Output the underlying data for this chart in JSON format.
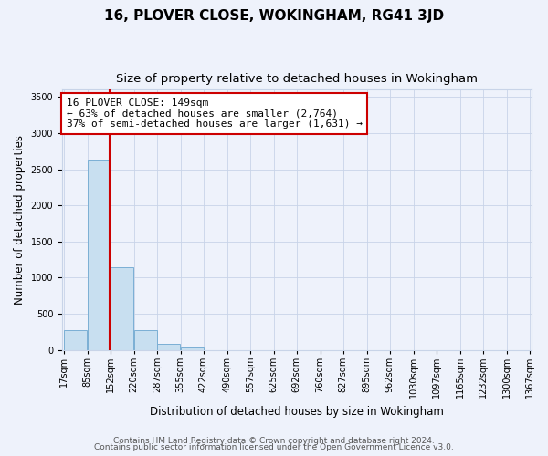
{
  "title": "16, PLOVER CLOSE, WOKINGHAM, RG41 3JD",
  "subtitle": "Size of property relative to detached houses in Wokingham",
  "xlabel": "Distribution of detached houses by size in Wokingham",
  "ylabel": "Number of detached properties",
  "bar_edges": [
    17,
    85,
    152,
    220,
    287,
    355,
    422,
    490,
    557,
    625,
    692,
    760,
    827,
    895,
    962,
    1030,
    1097,
    1165,
    1232,
    1300,
    1367
  ],
  "bar_heights": [
    270,
    2630,
    1140,
    275,
    80,
    40,
    0,
    0,
    0,
    0,
    0,
    0,
    0,
    0,
    0,
    0,
    0,
    0,
    0,
    0
  ],
  "bar_color": "#c8dff0",
  "bar_edge_color": "#7bafd4",
  "vline_x": 149,
  "vline_color": "#cc0000",
  "vline_linewidth": 1.5,
  "annotation_line1": "16 PLOVER CLOSE: 149sqm",
  "annotation_line2": "← 63% of detached houses are smaller (2,764)",
  "annotation_line3": "37% of semi-detached houses are larger (1,631) →",
  "annotation_box_color": "#cc0000",
  "annotation_box_bg": "#ffffff",
  "ylim_max": 3600,
  "yticks": [
    0,
    500,
    1000,
    1500,
    2000,
    2500,
    3000,
    3500
  ],
  "tick_labels": [
    "17sqm",
    "85sqm",
    "152sqm",
    "220sqm",
    "287sqm",
    "355sqm",
    "422sqm",
    "490sqm",
    "557sqm",
    "625sqm",
    "692sqm",
    "760sqm",
    "827sqm",
    "895sqm",
    "962sqm",
    "1030sqm",
    "1097sqm",
    "1165sqm",
    "1232sqm",
    "1300sqm",
    "1367sqm"
  ],
  "footer_line1": "Contains HM Land Registry data © Crown copyright and database right 2024.",
  "footer_line2": "Contains public sector information licensed under the Open Government Licence v3.0.",
  "background_color": "#eef2fb",
  "grid_color": "#c8d4e8",
  "title_fontsize": 11,
  "subtitle_fontsize": 9.5,
  "axis_label_fontsize": 8.5,
  "tick_fontsize": 7,
  "annotation_fontsize": 8,
  "footer_fontsize": 6.5
}
